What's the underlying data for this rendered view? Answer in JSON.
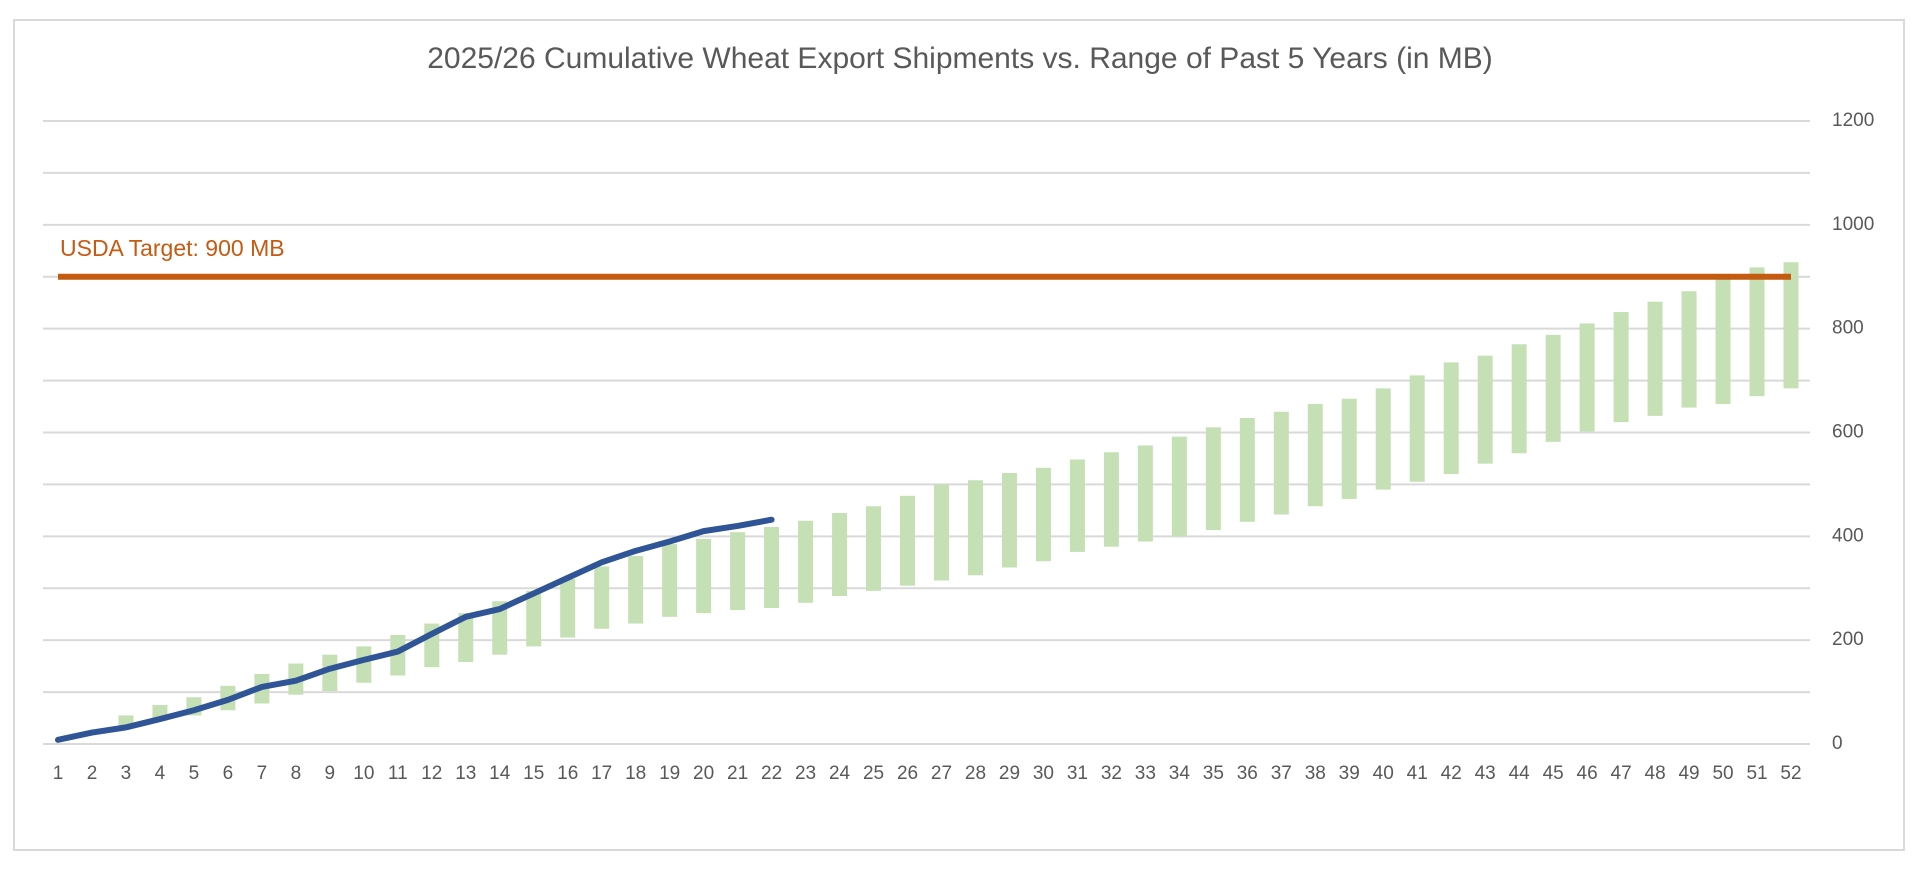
{
  "chart_data": {
    "type": "range-line",
    "title": "2025/26 Cumulative Wheat Export Shipments vs. Range of Past 5 Years (in MB)",
    "categories": [
      1,
      2,
      3,
      4,
      5,
      6,
      7,
      8,
      9,
      10,
      11,
      12,
      13,
      14,
      15,
      16,
      17,
      18,
      19,
      20,
      21,
      22,
      23,
      24,
      25,
      26,
      27,
      28,
      29,
      30,
      31,
      32,
      33,
      34,
      35,
      36,
      37,
      38,
      39,
      40,
      41,
      42,
      43,
      44,
      45,
      46,
      47,
      48,
      49,
      50,
      51,
      52
    ],
    "bars": {
      "color": "#c5e0b4",
      "low": [
        null,
        null,
        35,
        45,
        55,
        65,
        78,
        95,
        102,
        118,
        132,
        148,
        158,
        172,
        188,
        205,
        222,
        232,
        245,
        252,
        258,
        262,
        272,
        285,
        295,
        305,
        315,
        325,
        340,
        352,
        370,
        380,
        390,
        400,
        412,
        428,
        442,
        458,
        472,
        490,
        505,
        520,
        540,
        560,
        582,
        602,
        620,
        632,
        648,
        655,
        670,
        685
      ],
      "high": [
        null,
        null,
        55,
        75,
        90,
        112,
        135,
        155,
        172,
        188,
        210,
        232,
        252,
        275,
        295,
        318,
        342,
        362,
        385,
        395,
        408,
        418,
        430,
        445,
        458,
        478,
        500,
        508,
        522,
        532,
        548,
        562,
        575,
        592,
        610,
        628,
        640,
        655,
        665,
        685,
        710,
        735,
        748,
        770,
        788,
        810,
        832,
        852,
        872,
        900,
        918,
        928
      ]
    },
    "line": {
      "color": "#2f5597",
      "values": [
        8,
        22,
        32,
        48,
        65,
        85,
        110,
        122,
        145,
        162,
        178,
        212,
        245,
        260,
        290,
        320,
        350,
        372,
        390,
        410,
        420,
        432
      ]
    },
    "target": {
      "value": 900,
      "label": "USDA Target: 900 MB",
      "color": "#c55a11"
    },
    "ylim": [
      0,
      1200
    ],
    "yticks": [
      0,
      200,
      400,
      600,
      800,
      1000,
      1200
    ],
    "grid": true,
    "minor_grid": true,
    "y_axis_side": "right"
  }
}
